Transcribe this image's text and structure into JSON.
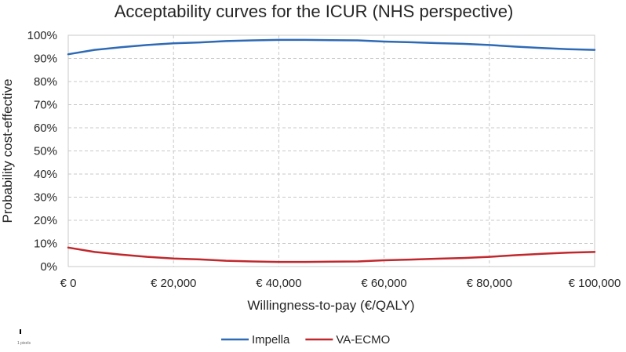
{
  "chart_data": {
    "type": "line",
    "title": "Acceptability curves for the ICUR (NHS perspective)",
    "xlabel": "Willingness-to-pay (€/QALY)",
    "ylabel": "Probability cost-effective",
    "xlim": [
      0,
      100000
    ],
    "ylim": [
      0,
      1
    ],
    "x_ticks": [
      0,
      20000,
      40000,
      60000,
      80000,
      100000
    ],
    "x_tick_labels": [
      "€ 0",
      "€ 20,000",
      "€ 40,000",
      "€ 60,000",
      "€ 80,000",
      "€ 100,000"
    ],
    "y_ticks": [
      0,
      0.1,
      0.2,
      0.3,
      0.4,
      0.5,
      0.6,
      0.7,
      0.8,
      0.9,
      1.0
    ],
    "y_tick_labels": [
      "0%",
      "10%",
      "20%",
      "30%",
      "40%",
      "50%",
      "60%",
      "70%",
      "80%",
      "90%",
      "100%"
    ],
    "grid": true,
    "legend_position": "bottom",
    "x": [
      0,
      5000,
      10000,
      15000,
      20000,
      25000,
      30000,
      35000,
      40000,
      45000,
      50000,
      55000,
      60000,
      65000,
      70000,
      75000,
      80000,
      85000,
      90000,
      95000,
      100000
    ],
    "series": [
      {
        "name": "Impella",
        "color": "#2e6ab5",
        "values": [
          0.918,
          0.937,
          0.948,
          0.958,
          0.965,
          0.969,
          0.975,
          0.978,
          0.98,
          0.98,
          0.979,
          0.978,
          0.973,
          0.97,
          0.966,
          0.963,
          0.958,
          0.951,
          0.945,
          0.94,
          0.937
        ]
      },
      {
        "name": "VA-ECMO",
        "color": "#c0282d",
        "values": [
          0.082,
          0.063,
          0.052,
          0.042,
          0.035,
          0.031,
          0.025,
          0.022,
          0.02,
          0.02,
          0.021,
          0.022,
          0.027,
          0.03,
          0.034,
          0.037,
          0.042,
          0.049,
          0.055,
          0.06,
          0.063
        ]
      }
    ]
  },
  "footnote": "1 pixels"
}
